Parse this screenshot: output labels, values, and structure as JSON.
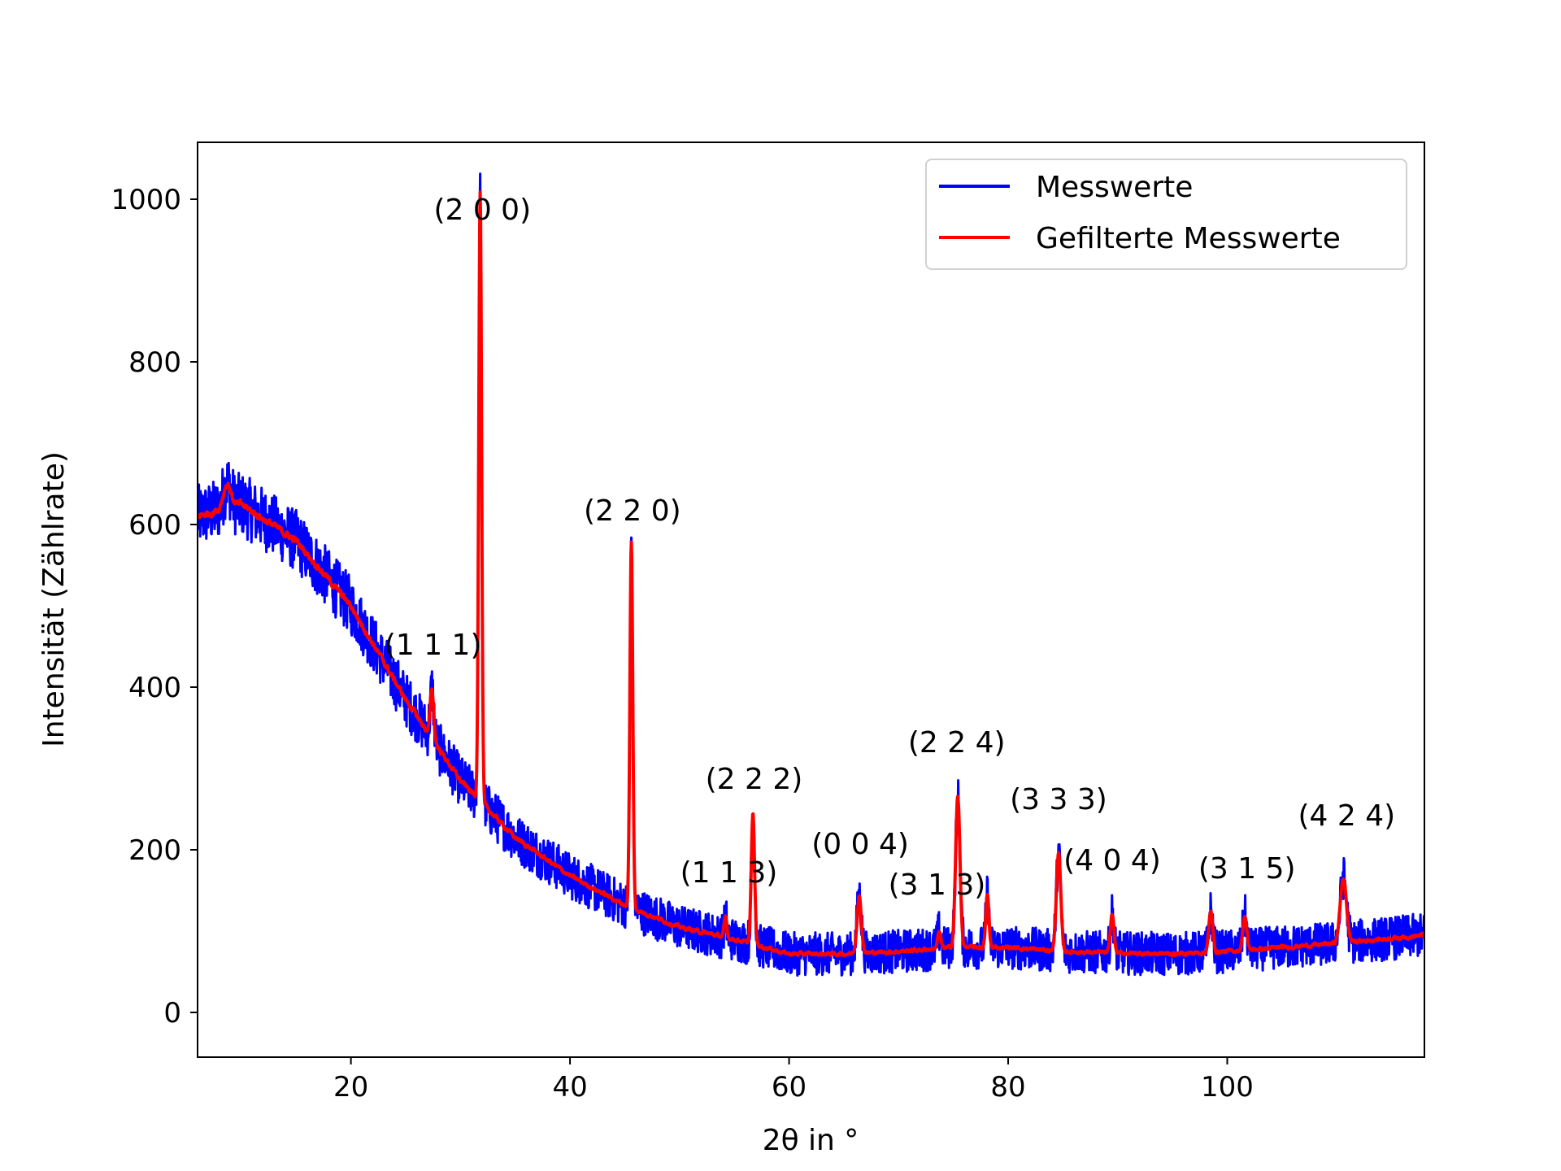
{
  "chart_data": {
    "type": "line",
    "title": "",
    "xlabel": "2θ in °",
    "ylabel": "Intensität (Zählrate)",
    "xlim": [
      6,
      118
    ],
    "ylim": [
      -55,
      1070
    ],
    "xticks": [
      20,
      40,
      60,
      80,
      100
    ],
    "yticks": [
      0,
      200,
      400,
      600,
      800,
      1000
    ],
    "grid": false,
    "legend_position": "top-right",
    "background": {
      "start": 610,
      "points": [
        [
          6,
          610
        ],
        [
          10,
          625
        ],
        [
          15,
          580
        ],
        [
          20,
          500
        ],
        [
          25,
          385
        ],
        [
          30,
          285
        ],
        [
          35,
          215
        ],
        [
          40,
          168
        ],
        [
          45,
          132
        ],
        [
          50,
          105
        ],
        [
          55,
          90
        ],
        [
          60,
          72
        ],
        [
          65,
          72
        ],
        [
          70,
          75
        ],
        [
          75,
          80
        ],
        [
          80,
          80
        ],
        [
          85,
          75
        ],
        [
          90,
          73
        ],
        [
          95,
          72
        ],
        [
          100,
          75
        ],
        [
          105,
          80
        ],
        [
          110,
          85
        ],
        [
          118,
          95
        ]
      ]
    },
    "peaks": [
      {
        "x": 8.7,
        "height": 30,
        "width": 0.35
      },
      {
        "x": 27.4,
        "height": 60,
        "width": 0.16
      },
      {
        "x": 31.8,
        "height": 750,
        "width": 0.13
      },
      {
        "x": 45.6,
        "height": 450,
        "width": 0.13
      },
      {
        "x": 54.2,
        "height": 25,
        "width": 0.12
      },
      {
        "x": 56.7,
        "height": 160,
        "width": 0.15
      },
      {
        "x": 66.4,
        "height": 70,
        "width": 0.2
      },
      {
        "x": 73.7,
        "height": 20,
        "width": 0.15
      },
      {
        "x": 75.4,
        "height": 185,
        "width": 0.2
      },
      {
        "x": 78.1,
        "height": 65,
        "width": 0.14
      },
      {
        "x": 84.6,
        "height": 120,
        "width": 0.2
      },
      {
        "x": 89.5,
        "height": 48,
        "width": 0.16
      },
      {
        "x": 98.5,
        "height": 50,
        "width": 0.18
      },
      {
        "x": 101.6,
        "height": 42,
        "width": 0.18
      },
      {
        "x": 110.6,
        "height": 80,
        "width": 0.28
      }
    ],
    "series": [
      {
        "name": "Messwerte",
        "color": "#0000ff",
        "noise": 28
      },
      {
        "name": "Gefilterte Messwerte",
        "color": "#ff0000",
        "noise": 8
      }
    ],
    "annotations": [
      {
        "text": "(2 0 0)",
        "x": 32.0,
        "y": 975
      },
      {
        "text": "(2 2 0)",
        "x": 45.7,
        "y": 605
      },
      {
        "text": "(1 1 1)",
        "x": 27.5,
        "y": 440
      },
      {
        "text": "(2 2 2)",
        "x": 56.8,
        "y": 275
      },
      {
        "text": "(1 1 3)",
        "x": 54.5,
        "y": 160
      },
      {
        "text": "(0 0 4)",
        "x": 66.5,
        "y": 195
      },
      {
        "text": "(3 1 3)",
        "x": 73.5,
        "y": 145
      },
      {
        "text": "(2 2 4)",
        "x": 75.3,
        "y": 320
      },
      {
        "text": "(3 3 3)",
        "x": 84.6,
        "y": 250
      },
      {
        "text": "(4 0 4)",
        "x": 89.5,
        "y": 175
      },
      {
        "text": "(3 1 5)",
        "x": 101.8,
        "y": 165
      },
      {
        "text": "(4 2 4)",
        "x": 110.9,
        "y": 230
      }
    ]
  }
}
